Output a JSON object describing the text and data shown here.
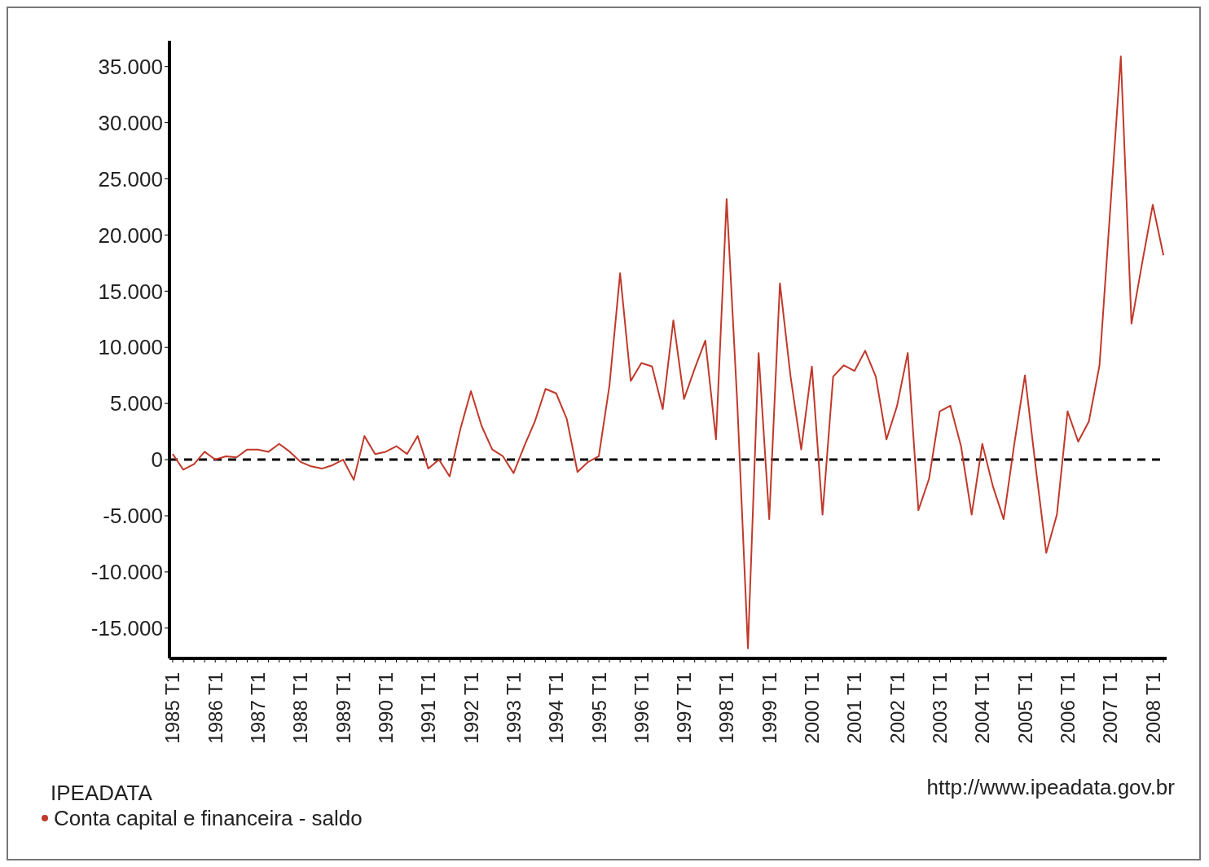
{
  "chart_data": {
    "type": "line",
    "legend_title": "IPEADATA",
    "annotations": [
      "http://www.ipeadata.gov.br"
    ],
    "categories": [
      "1985 T1",
      null,
      null,
      null,
      "1986 T1",
      null,
      null,
      null,
      "1987 T1",
      null,
      null,
      null,
      "1988 T1",
      null,
      null,
      null,
      "1989 T1",
      null,
      null,
      null,
      "1990 T1",
      null,
      null,
      null,
      "1991 T1",
      null,
      null,
      null,
      "1992 T1",
      null,
      null,
      null,
      "1993 T1",
      null,
      null,
      null,
      "1994 T1",
      null,
      null,
      null,
      "1995 T1",
      null,
      null,
      null,
      "1996 T1",
      null,
      null,
      null,
      "1997 T1",
      null,
      null,
      null,
      "1998 T1",
      null,
      null,
      null,
      "1999 T1",
      null,
      null,
      null,
      "2000 T1",
      null,
      null,
      null,
      "2001 T1",
      null,
      null,
      null,
      "2002 T1",
      null,
      null,
      null,
      "2003 T1",
      null,
      null,
      null,
      "2004 T1",
      null,
      null,
      null,
      "2005 T1",
      null,
      null,
      null,
      "2006 T1",
      null,
      null,
      null,
      "2007 T1",
      null,
      null,
      null,
      "2008 T1",
      null
    ],
    "series": [
      {
        "name": "Conta capital e financeira - saldo",
        "color": "#c0392b",
        "values": [
          500,
          -900,
          -400,
          700,
          0,
          300,
          200,
          900,
          900,
          700,
          1400,
          700,
          -200,
          -600,
          -800,
          -500,
          0,
          -1800,
          2100,
          500,
          700,
          1200,
          500,
          2100,
          -800,
          0,
          -1500,
          2700,
          6100,
          3000,
          900,
          300,
          -1200,
          1200,
          3400,
          6300,
          5900,
          3600,
          -1100,
          -200,
          300,
          6600,
          16600,
          7000,
          8600,
          8300,
          4500,
          12400,
          5400,
          8100,
          10600,
          1800,
          23200,
          5000,
          -16800,
          9500,
          -5300,
          15700,
          7400,
          900,
          8300,
          -4900,
          7400,
          8400,
          7900,
          9700,
          7400,
          1800,
          4800,
          9500,
          -4500,
          -1700,
          4300,
          4800,
          1200,
          -4900,
          1400,
          -2400,
          -5300,
          1400,
          7500,
          -600,
          -8300,
          -4900,
          4300,
          1600,
          3400,
          8400,
          22200,
          35900,
          12100,
          17500,
          22700,
          18200
        ]
      }
    ],
    "ylim": [
      -17700,
      37300
    ],
    "yticks": [
      {
        "value": -15000,
        "label": "-15.000"
      },
      {
        "value": -10000,
        "label": "-10.000"
      },
      {
        "value": -5000,
        "label": "-5.000"
      },
      0,
      {
        "value": 5000,
        "label": "5.000"
      },
      {
        "value": 10000,
        "label": "10.000"
      },
      {
        "value": 15000,
        "label": "15.000"
      },
      {
        "value": 20000,
        "label": "20.000"
      },
      {
        "value": 25000,
        "label": "25.000"
      },
      {
        "value": 30000,
        "label": "30.000"
      },
      {
        "value": 35000,
        "label": "35.000"
      }
    ],
    "ref_lines": [
      {
        "axis": "y",
        "value": 0,
        "color": "#000000",
        "line_style": "dashed"
      }
    ],
    "grid": false,
    "legend": "bottom left",
    "marker": "none",
    "line_style": "solid"
  }
}
